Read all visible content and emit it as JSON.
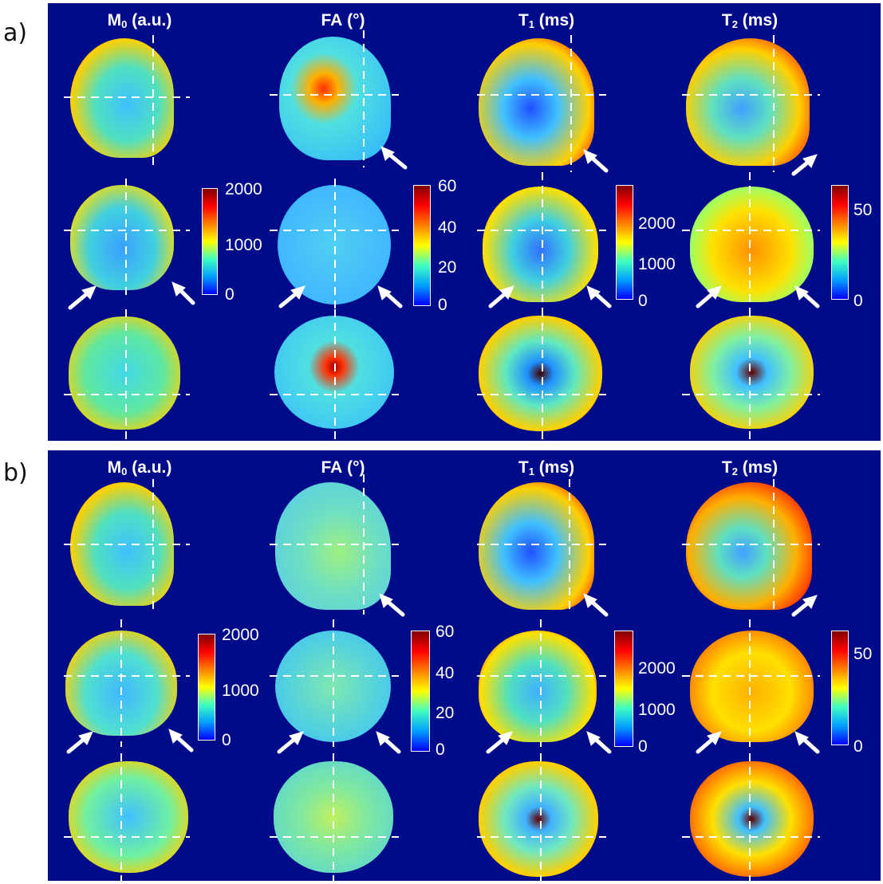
{
  "panels": [
    {
      "letter": "a)",
      "columns": [
        {
          "label": "M",
          "sub": "0",
          "unit": "(a.u.)",
          "ticks": [
            "2000",
            "1000",
            "0"
          ]
        },
        {
          "label": "FA",
          "sub": "",
          "unit": "(°)",
          "ticks": [
            "60",
            "40",
            "20",
            "0"
          ]
        },
        {
          "label": "T",
          "sub": "1",
          "unit": "(ms)",
          "ticks": [
            "2000",
            "1000",
            "0"
          ]
        },
        {
          "label": "T",
          "sub": "2",
          "unit": "(ms)",
          "ticks": [
            "50",
            "0"
          ]
        }
      ]
    },
    {
      "letter": "b)",
      "columns": [
        {
          "label": "M",
          "sub": "0",
          "unit": "(a.u.)",
          "ticks": [
            "2000",
            "1000",
            "0"
          ]
        },
        {
          "label": "FA",
          "sub": "",
          "unit": "(°)",
          "ticks": [
            "60",
            "40",
            "20",
            "0"
          ]
        },
        {
          "label": "T",
          "sub": "1",
          "unit": "(ms)",
          "ticks": [
            "2000",
            "1000",
            "0"
          ]
        },
        {
          "label": "T",
          "sub": "2",
          "unit": "(ms)",
          "ticks": [
            "50",
            "0"
          ]
        }
      ]
    }
  ],
  "colors": {
    "background": "#000b8a",
    "colormap": [
      "#00008f",
      "#0000ff",
      "#00a0ff",
      "#40ffc0",
      "#ffff00",
      "#ff8000",
      "#ff0000",
      "#800000"
    ]
  }
}
